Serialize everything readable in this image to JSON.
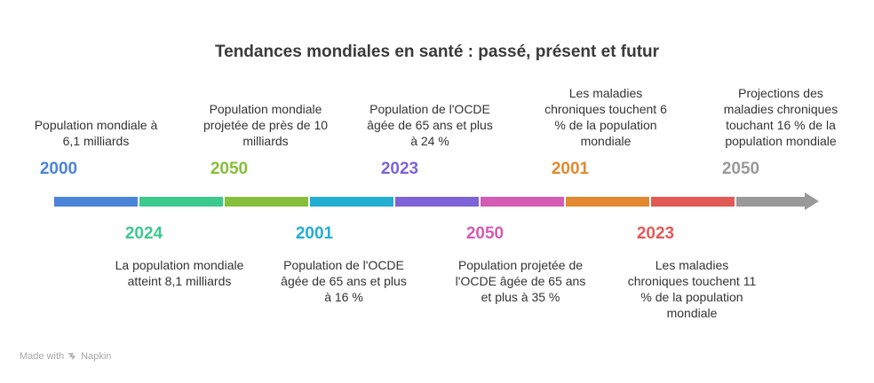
{
  "title": "Tendances mondiales en santé : passé, présent et futur",
  "colors": {
    "seg1": "#4a84d9",
    "seg2": "#3cc98d",
    "seg3": "#86bf3a",
    "seg4": "#23aed3",
    "seg5": "#7d63d6",
    "seg6": "#d35bb4",
    "seg7": "#e2892f",
    "seg8": "#e25a55",
    "seg9": "#999999"
  },
  "events": [
    {
      "year": "2000",
      "text": "Population mondiale à 6,1 milliards",
      "color": "#4a84d9"
    },
    {
      "year": "2024",
      "text": "La population mondiale atteint 8,1 milliards",
      "color": "#3cc98d"
    },
    {
      "year": "2050",
      "text": "Population mondiale projetée de près de 10 milliards",
      "color": "#86bf3a"
    },
    {
      "year": "2001",
      "text": "Population de l'OCDE âgée de 65 ans et plus à 16 %",
      "color": "#23aed3"
    },
    {
      "year": "2023",
      "text": "Population de l'OCDE âgée de 65 ans et plus à 24 %",
      "color": "#7d63d6"
    },
    {
      "year": "2050",
      "text": "Population projetée de l'OCDE âgée de 65 ans et plus à 35 %",
      "color": "#d35bb4"
    },
    {
      "year": "2001",
      "text": "Les maladies chroniques touchent 6 % de la population mondiale",
      "color": "#e2892f"
    },
    {
      "year": "2023",
      "text": "Les maladies chroniques touchent 11 % de la population mondiale",
      "color": "#e25a55"
    },
    {
      "year": "2050",
      "text": "Projections des maladies chroniques touchant 16 % de la population mondiale",
      "color": "#999999"
    }
  ],
  "footer": {
    "made_with": "Made with",
    "brand": "Napkin"
  }
}
